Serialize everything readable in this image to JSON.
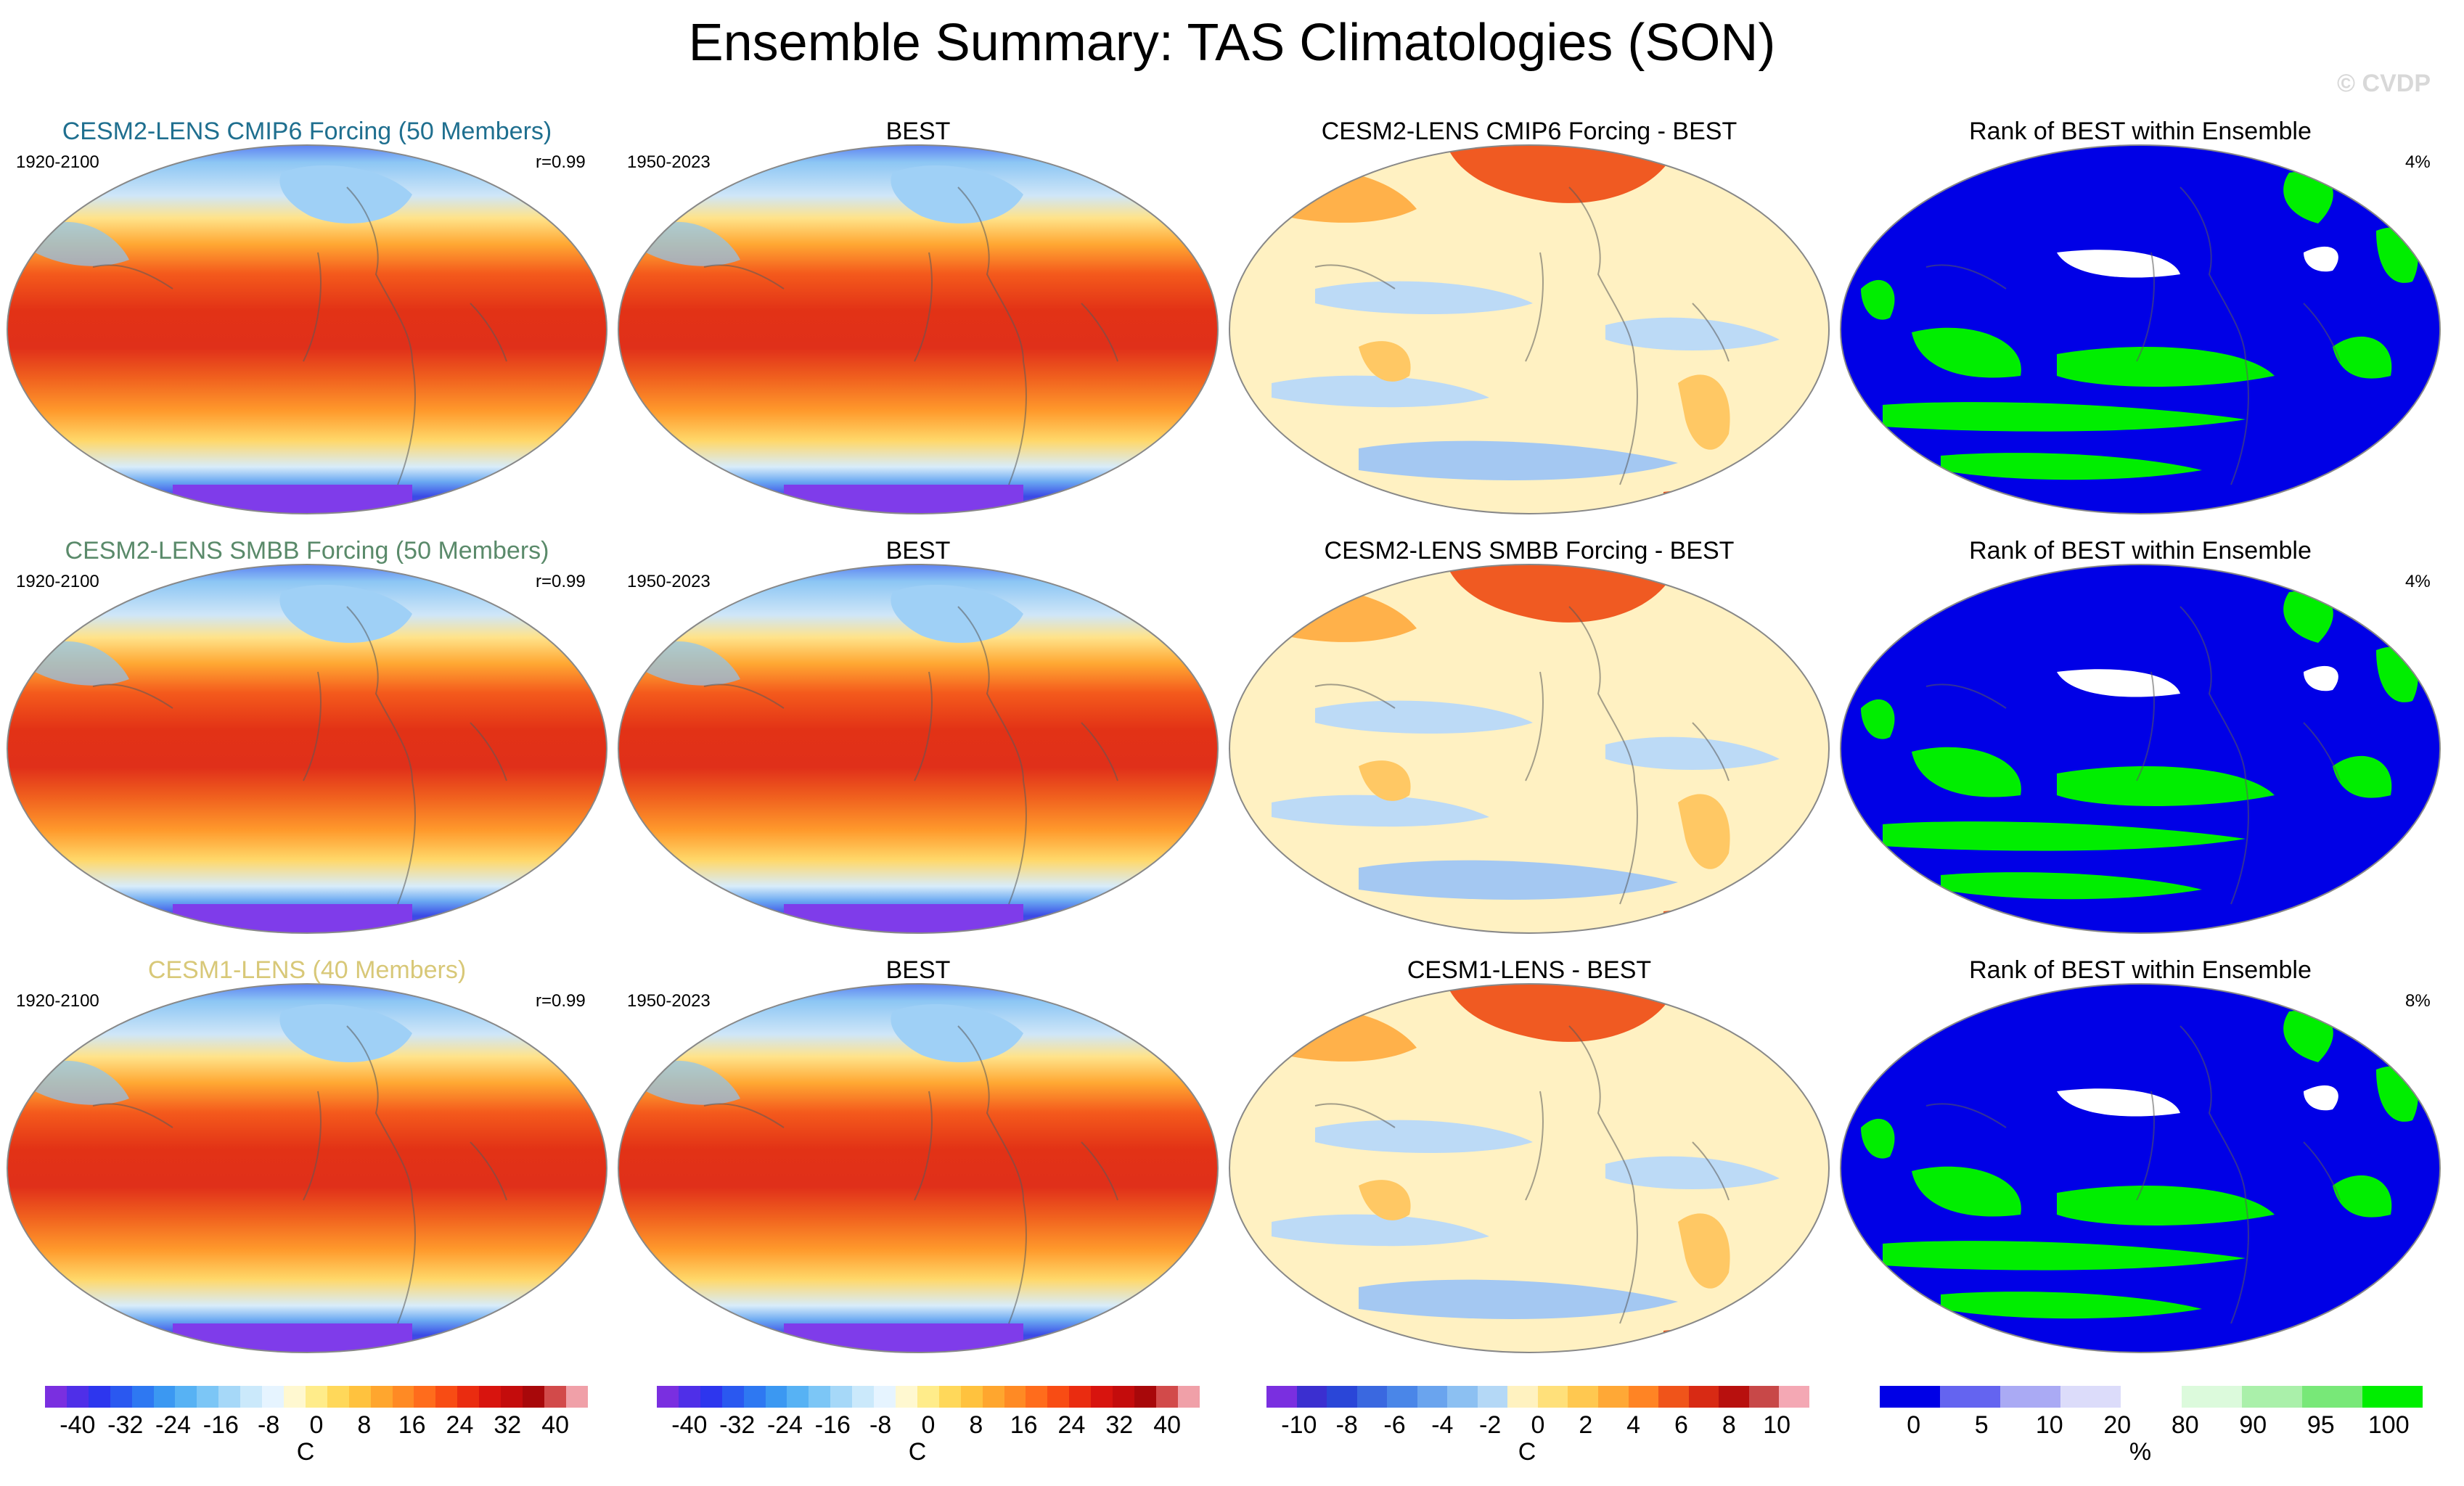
{
  "title": "Ensemble Summary: TAS Climatologies (SON)",
  "watermark": "© CVDP",
  "rows": [
    {
      "ensemble": {
        "title": "CESM2-LENS CMIP6 Forcing (50 Members)",
        "title_color": "#1f6f8f",
        "period": "1920-2100",
        "r": "r=0.99"
      },
      "obs": {
        "title": "BEST",
        "period": "1950-2023"
      },
      "diff": {
        "title": "CESM2-LENS CMIP6 Forcing - BEST"
      },
      "rank": {
        "title": "Rank of BEST within Ensemble",
        "pct": "4%"
      }
    },
    {
      "ensemble": {
        "title": "CESM2-LENS SMBB Forcing (50 Members)",
        "title_color": "#5a8a6a",
        "period": "1920-2100",
        "r": "r=0.99"
      },
      "obs": {
        "title": "BEST",
        "period": "1950-2023"
      },
      "diff": {
        "title": "CESM2-LENS SMBB Forcing - BEST"
      },
      "rank": {
        "title": "Rank of BEST within Ensemble",
        "pct": "4%"
      }
    },
    {
      "ensemble": {
        "title": "CESM1-LENS (40 Members)",
        "title_color": "#d8c878",
        "period": "1920-2100",
        "r": "r=0.99"
      },
      "obs": {
        "title": "BEST",
        "period": "1950-2023"
      },
      "diff": {
        "title": "CESM1-LENS - BEST"
      },
      "rank": {
        "title": "Rank of BEST within Ensemble",
        "pct": "8%"
      }
    }
  ],
  "chart_data": [
    {
      "type": "heatmap",
      "name": "climatology",
      "variable": "TAS",
      "season": "SON",
      "unit": "C",
      "levels": [
        -40,
        -32,
        -24,
        -16,
        -8,
        0,
        8,
        16,
        24,
        32,
        40
      ],
      "tick_labels": [
        "-40",
        "-32",
        "-24",
        "-16",
        "-8",
        "0",
        "8",
        "16",
        "24",
        "32",
        "40"
      ],
      "colors": [
        "#7a2fe0",
        "#4f2fe8",
        "#2d36ee",
        "#2a58f0",
        "#2e78f2",
        "#3b98f2",
        "#57b2f4",
        "#7cc6f6",
        "#a6d8f8",
        "#cbe9fb",
        "#e6f4ff",
        "#fff8d0",
        "#ffec8a",
        "#ffd85a",
        "#ffc23e",
        "#ffa62e",
        "#ff8a24",
        "#ff6c1c",
        "#f84c14",
        "#ea2c10",
        "#d8140e",
        "#c40c0c",
        "#a8080a",
        "#d24a4a",
        "#f0a0a8"
      ]
    },
    {
      "type": "heatmap",
      "name": "difference",
      "unit": "C",
      "levels": [
        -10,
        -8,
        -6,
        -4,
        -2,
        0,
        2,
        4,
        6,
        8,
        10
      ],
      "tick_labels": [
        "-10",
        "-8",
        "-6",
        "-4",
        "-2",
        "0",
        "2",
        "4",
        "6",
        "8",
        "10"
      ],
      "colors": [
        "#7a2fe0",
        "#3b2fd0",
        "#2a46d8",
        "#3a68e0",
        "#4a86e8",
        "#6aa4ee",
        "#8cc0f2",
        "#b4d8f6",
        "#fff2c0",
        "#ffe07a",
        "#ffc850",
        "#ffa836",
        "#ff8424",
        "#f0541a",
        "#d82a14",
        "#b8100e",
        "#c84848",
        "#f4a8b4"
      ]
    },
    {
      "type": "heatmap",
      "name": "rank",
      "unit": "%",
      "levels": [
        0,
        5,
        10,
        20,
        80,
        90,
        95,
        100
      ],
      "tick_labels": [
        "0",
        "5",
        "10",
        "20",
        "80",
        "90",
        "95",
        "100"
      ],
      "colors": [
        "#0000e6",
        "#6464f0",
        "#aaaaf4",
        "#dcdcfa",
        "#ffffff",
        "#dcfadc",
        "#aaf0aa",
        "#78e878",
        "#00ee00"
      ]
    }
  ],
  "colorbar_units": [
    "C",
    "C",
    "C",
    "%"
  ]
}
